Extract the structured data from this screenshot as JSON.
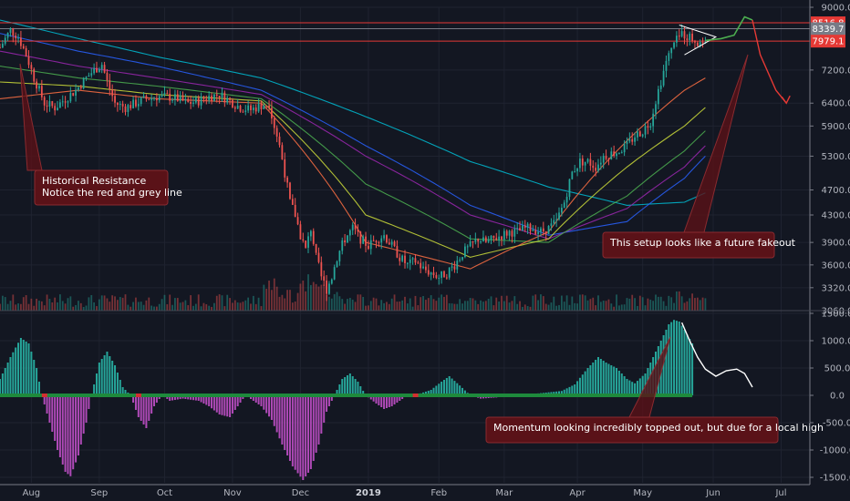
{
  "chart_data": [
    {
      "type": "candlestick",
      "yscale": "log",
      "ylim": [
        3060,
        9000
      ],
      "y_ticks": [
        9000,
        7200,
        6400,
        5900,
        5300,
        4700,
        4300,
        3900,
        3600,
        3320,
        3060
      ],
      "x_ticks": [
        "Aug",
        "Sep",
        "Oct",
        "Nov",
        "Dec",
        "2019",
        "Feb",
        "Mar",
        "Apr",
        "May",
        "Jun",
        "Jul"
      ],
      "price_badges": [
        {
          "label": "8516.8",
          "value": 8516.8,
          "color": "#e53935"
        },
        {
          "label": "8339.7",
          "value": 8339.7,
          "color": "#787b86"
        },
        {
          "label": "7979.1",
          "value": 7979.1,
          "color": "#e53935"
        }
      ],
      "horizontal_lines": [
        {
          "value": 8516.8,
          "color": "#e53935"
        },
        {
          "value": 8339.7,
          "color": "#787b86"
        },
        {
          "value": 7979.1,
          "color": "#e53935"
        }
      ],
      "price_path": [
        [
          0,
          7800
        ],
        [
          4,
          8300
        ],
        [
          7,
          8100
        ],
        [
          10,
          7600
        ],
        [
          13,
          7000
        ],
        [
          17,
          6400
        ],
        [
          21,
          6300
        ],
        [
          25,
          6500
        ],
        [
          29,
          6700
        ],
        [
          33,
          7000
        ],
        [
          36,
          7200
        ],
        [
          39,
          7350
        ],
        [
          41,
          6900
        ],
        [
          44,
          6400
        ],
        [
          48,
          6300
        ],
        [
          52,
          6400
        ],
        [
          56,
          6500
        ],
        [
          60,
          6550
        ],
        [
          64,
          6550
        ],
        [
          68,
          6500
        ],
        [
          72,
          6400
        ],
        [
          76,
          6450
        ],
        [
          80,
          6550
        ],
        [
          84,
          6600
        ],
        [
          88,
          6450
        ],
        [
          92,
          6300
        ],
        [
          96,
          6250
        ],
        [
          100,
          6350
        ],
        [
          103,
          6400
        ],
        [
          105,
          5900
        ],
        [
          107,
          5500
        ],
        [
          109,
          5000
        ],
        [
          111,
          4500
        ],
        [
          113,
          4300
        ],
        [
          115,
          4000
        ],
        [
          117,
          3800
        ],
        [
          119,
          4100
        ],
        [
          121,
          3700
        ],
        [
          123,
          3450
        ],
        [
          125,
          3300
        ],
        [
          127,
          3450
        ],
        [
          129,
          3700
        ],
        [
          132,
          3950
        ],
        [
          135,
          4100
        ],
        [
          138,
          3950
        ],
        [
          141,
          3850
        ],
        [
          144,
          3950
        ],
        [
          147,
          4000
        ],
        [
          150,
          3850
        ],
        [
          153,
          3700
        ],
        [
          156,
          3600
        ],
        [
          159,
          3650
        ],
        [
          162,
          3550
        ],
        [
          165,
          3500
        ],
        [
          168,
          3450
        ],
        [
          171,
          3500
        ],
        [
          174,
          3600
        ],
        [
          177,
          3750
        ],
        [
          180,
          3850
        ],
        [
          183,
          3950
        ],
        [
          186,
          3900
        ],
        [
          189,
          3950
        ],
        [
          192,
          4000
        ],
        [
          195,
          4050
        ],
        [
          198,
          4050
        ],
        [
          201,
          4100
        ],
        [
          204,
          4100
        ],
        [
          207,
          4050
        ],
        [
          210,
          4100
        ],
        [
          213,
          4200
        ],
        [
          216,
          4500
        ],
        [
          219,
          5000
        ],
        [
          222,
          5200
        ],
        [
          225,
          5200
        ],
        [
          228,
          5100
        ],
        [
          231,
          5300
        ],
        [
          234,
          5350
        ],
        [
          237,
          5400
        ],
        [
          240,
          5500
        ],
        [
          243,
          5700
        ],
        [
          246,
          5800
        ],
        [
          249,
          6000
        ],
        [
          252,
          6700
        ],
        [
          255,
          7400
        ],
        [
          258,
          7900
        ],
        [
          261,
          8200
        ],
        [
          264,
          8100
        ],
        [
          266,
          8000
        ],
        [
          268,
          7950
        ],
        [
          270,
          8000
        ]
      ],
      "projection_path": [
        [
          270,
          8000
        ],
        [
          276,
          8050
        ],
        [
          281,
          8150
        ],
        [
          285,
          8700
        ],
        [
          288,
          8600
        ],
        [
          291,
          7600
        ],
        [
          297,
          6700
        ],
        [
          301,
          6400
        ]
      ],
      "moving_averages": [
        {
          "color": "#00bcd4",
          "values": [
            [
              0,
              8600
            ],
            [
              30,
              8050
            ],
            [
              60,
              7550
            ],
            [
              100,
              7000
            ],
            [
              140,
              6100
            ],
            [
              180,
              5200
            ],
            [
              210,
              4750
            ],
            [
              240,
              4450
            ],
            [
              262,
              4500
            ],
            [
              270,
              4650
            ]
          ]
        },
        {
          "color": "#2962ff",
          "values": [
            [
              0,
              8200
            ],
            [
              30,
              7700
            ],
            [
              60,
              7300
            ],
            [
              100,
              6700
            ],
            [
              140,
              5500
            ],
            [
              180,
              4450
            ],
            [
              210,
              4000
            ],
            [
              240,
              4200
            ],
            [
              262,
              4900
            ],
            [
              270,
              5300
            ]
          ]
        },
        {
          "color": "#9c27b0",
          "values": [
            [
              0,
              7700
            ],
            [
              30,
              7300
            ],
            [
              60,
              7000
            ],
            [
              100,
              6600
            ],
            [
              140,
              5300
            ],
            [
              180,
              4300
            ],
            [
              210,
              3950
            ],
            [
              240,
              4400
            ],
            [
              262,
              5100
            ],
            [
              270,
              5500
            ]
          ]
        },
        {
          "color": "#4caf50",
          "values": [
            [
              0,
              7300
            ],
            [
              30,
              7000
            ],
            [
              60,
              6800
            ],
            [
              100,
              6500
            ],
            [
              140,
              4800
            ],
            [
              180,
              3950
            ],
            [
              210,
              3900
            ],
            [
              240,
              4600
            ],
            [
              262,
              5400
            ],
            [
              270,
              5800
            ]
          ]
        },
        {
          "color": "#cddc39",
          "values": [
            [
              0,
              6900
            ],
            [
              30,
              6800
            ],
            [
              60,
              6600
            ],
            [
              100,
              6450
            ],
            [
              140,
              4300
            ],
            [
              180,
              3700
            ],
            [
              210,
              3950
            ],
            [
              240,
              5100
            ],
            [
              262,
              5900
            ],
            [
              270,
              6300
            ]
          ]
        },
        {
          "color": "#ff7043",
          "values": [
            [
              0,
              6500
            ],
            [
              30,
              6700
            ],
            [
              60,
              6500
            ],
            [
              100,
              6400
            ],
            [
              140,
              3900
            ],
            [
              180,
              3550
            ],
            [
              210,
              4050
            ],
            [
              240,
              5600
            ],
            [
              262,
              6700
            ],
            [
              270,
              7000
            ]
          ]
        }
      ],
      "triangle": [
        [
          260,
          8450
        ],
        [
          262,
          7600
        ],
        [
          274,
          8100
        ]
      ],
      "annotations": [
        {
          "lines": [
            "Historical Resistance",
            "Notice the red and grey line"
          ]
        },
        {
          "lines": [
            "This setup looks like a future fakeout"
          ]
        }
      ]
    },
    {
      "type": "bar",
      "ylim": [
        -1600,
        1550
      ],
      "y_ticks": [
        1500,
        1000,
        500,
        0,
        -500,
        -1000,
        -1500
      ],
      "y_tick_labels": [
        "1500.0",
        "1000.0",
        "500.0",
        "0.0",
        "-500.0",
        "-1000.0",
        "-1500.0"
      ],
      "momentum_path": [
        [
          0,
          300
        ],
        [
          4,
          700
        ],
        [
          8,
          1050
        ],
        [
          11,
          950
        ],
        [
          14,
          500
        ],
        [
          16,
          0
        ],
        [
          19,
          -500
        ],
        [
          22,
          -1000
        ],
        [
          25,
          -1400
        ],
        [
          27,
          -1480
        ],
        [
          30,
          -1100
        ],
        [
          33,
          -500
        ],
        [
          35,
          0
        ],
        [
          38,
          600
        ],
        [
          41,
          800
        ],
        [
          44,
          550
        ],
        [
          47,
          150
        ],
        [
          50,
          0
        ],
        [
          53,
          -400
        ],
        [
          56,
          -600
        ],
        [
          59,
          -200
        ],
        [
          62,
          0
        ],
        [
          65,
          -100
        ],
        [
          70,
          -60
        ],
        [
          76,
          -100
        ],
        [
          80,
          -200
        ],
        [
          84,
          -350
        ],
        [
          88,
          -400
        ],
        [
          91,
          -200
        ],
        [
          94,
          0
        ],
        [
          97,
          -100
        ],
        [
          100,
          -200
        ],
        [
          104,
          -450
        ],
        [
          108,
          -900
        ],
        [
          112,
          -1300
        ],
        [
          116,
          -1550
        ],
        [
          119,
          -1350
        ],
        [
          122,
          -900
        ],
        [
          125,
          -300
        ],
        [
          128,
          0
        ],
        [
          131,
          300
        ],
        [
          134,
          400
        ],
        [
          137,
          250
        ],
        [
          140,
          0
        ],
        [
          144,
          -150
        ],
        [
          147,
          -250
        ],
        [
          150,
          -200
        ],
        [
          153,
          -100
        ],
        [
          156,
          0
        ],
        [
          160,
          20
        ],
        [
          165,
          100
        ],
        [
          169,
          250
        ],
        [
          172,
          350
        ],
        [
          176,
          180
        ],
        [
          180,
          0
        ],
        [
          184,
          -60
        ],
        [
          190,
          -40
        ],
        [
          195,
          0
        ],
        [
          205,
          30
        ],
        [
          215,
          80
        ],
        [
          220,
          200
        ],
        [
          225,
          500
        ],
        [
          229,
          700
        ],
        [
          232,
          600
        ],
        [
          236,
          500
        ],
        [
          240,
          300
        ],
        [
          243,
          220
        ],
        [
          247,
          400
        ],
        [
          250,
          700
        ],
        [
          253,
          1000
        ],
        [
          256,
          1300
        ],
        [
          258,
          1380
        ],
        [
          260,
          1350
        ],
        [
          262,
          1200
        ],
        [
          265,
          950
        ]
      ],
      "projection_path": [
        [
          261,
          1330
        ],
        [
          264,
          1000
        ],
        [
          267,
          700
        ],
        [
          270,
          480
        ],
        [
          274,
          350
        ],
        [
          278,
          450
        ],
        [
          282,
          480
        ],
        [
          285,
          400
        ],
        [
          288,
          150
        ]
      ],
      "annotation": {
        "lines": [
          "Momentum looking incredibly topped out, but due for a local high"
        ]
      }
    }
  ]
}
